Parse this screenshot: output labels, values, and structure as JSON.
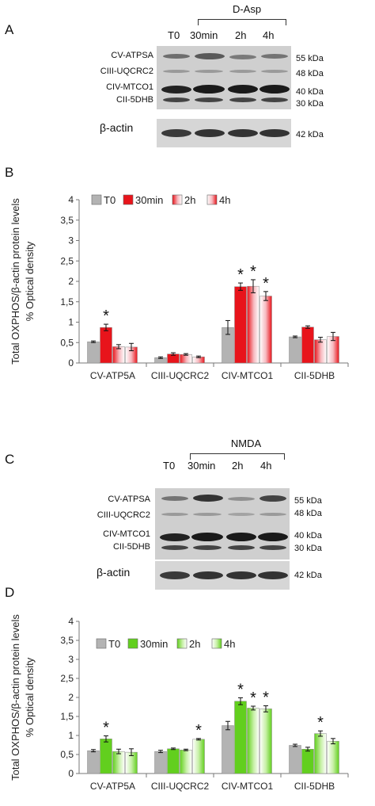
{
  "panels": {
    "A": "A",
    "B": "B",
    "C": "C",
    "D": "D"
  },
  "blots": [
    {
      "id": "A",
      "treatment": "D-Asp",
      "lanes": [
        "T0",
        "30min",
        "2h",
        "4h"
      ],
      "bands": [
        "CV-ATPSA",
        "CIII-UQCRC2",
        "CIV-MTCO1",
        "CII-5DHB"
      ],
      "kda": [
        "55 kDa",
        "48 kDa",
        "40 kDa",
        "30 kDa"
      ],
      "actin_label": "β-actin",
      "actin_kda": "42 kDa"
    },
    {
      "id": "C",
      "treatment": "NMDA",
      "lanes": [
        "T0",
        "30min",
        "2h",
        "4h"
      ],
      "bands": [
        "CV-ATPSA",
        "CIII-UQCRC2",
        "CIV-MTCO1",
        "CII-5DHB"
      ],
      "kda": [
        "55 kDa",
        "48 kDa",
        "40 kDa",
        "30 kDa"
      ],
      "actin_label": "β-actin",
      "actin_kda": "42 kDa"
    }
  ],
  "colors": {
    "t0": "#b3b3b3",
    "red": "#e8141b",
    "red_light": "#f7b9bf",
    "green": "#62cf1e",
    "green_light": "#c8f0a8"
  },
  "chart_data": [
    {
      "type": "bar",
      "panel": "B",
      "ylabel": "Total OXPHOS/β-actin protein levels",
      "ylabel2": "% Optical density",
      "ylim": [
        0,
        4
      ],
      "yticks": [
        "0",
        "0,5",
        "1",
        "1,5",
        "2",
        "2,5",
        "3",
        "3,5",
        "4"
      ],
      "categories": [
        "CV-ATP5A",
        "CIII-UQCRC2",
        "CIV-MTCO1",
        "CII-5DHB"
      ],
      "legend": "top-left",
      "series": [
        {
          "name": "T0",
          "values": [
            0.52,
            0.13,
            0.87,
            0.64
          ],
          "errors": [
            0.02,
            0.02,
            0.17,
            0.02
          ]
        },
        {
          "name": "30min",
          "values": [
            0.87,
            0.22,
            1.87,
            0.88
          ],
          "errors": [
            0.08,
            0.03,
            0.09,
            0.03
          ]
        },
        {
          "name": "2h",
          "values": [
            0.4,
            0.21,
            1.88,
            0.57
          ],
          "errors": [
            0.05,
            0.02,
            0.16,
            0.06
          ]
        },
        {
          "name": "4h",
          "values": [
            0.39,
            0.15,
            1.64,
            0.65
          ],
          "errors": [
            0.09,
            0.02,
            0.11,
            0.1
          ]
        }
      ],
      "significance": [
        {
          "category": 0,
          "series": 1,
          "label": "*"
        },
        {
          "category": 2,
          "series": 1,
          "label": "*"
        },
        {
          "category": 2,
          "series": 2,
          "label": "*"
        },
        {
          "category": 2,
          "series": 3,
          "label": "*"
        }
      ]
    },
    {
      "type": "bar",
      "panel": "D",
      "ylabel": "Total OXPHOS/β-actin protein levels",
      "ylabel2": "% Optical density",
      "ylim": [
        0,
        4
      ],
      "yticks": [
        "0",
        "0,5",
        "1",
        "1,5",
        "2",
        "2,5",
        "3",
        "3,5",
        "4"
      ],
      "categories": [
        "CV-ATP5A",
        "CIII-UQCRC2",
        "CIV-MTCO1",
        "CII-5DHB"
      ],
      "legend": "top-left",
      "series": [
        {
          "name": "T0",
          "values": [
            0.6,
            0.58,
            1.26,
            0.74
          ],
          "errors": [
            0.03,
            0.03,
            0.11,
            0.03
          ]
        },
        {
          "name": "30min",
          "values": [
            0.91,
            0.65,
            1.9,
            0.64
          ],
          "errors": [
            0.08,
            0.02,
            0.09,
            0.05
          ]
        },
        {
          "name": "2h",
          "values": [
            0.58,
            0.62,
            1.72,
            1.05
          ],
          "errors": [
            0.06,
            0.02,
            0.05,
            0.07
          ]
        },
        {
          "name": "4h",
          "values": [
            0.56,
            0.9,
            1.7,
            0.85
          ],
          "errors": [
            0.09,
            0.02,
            0.08,
            0.07
          ]
        }
      ],
      "significance": [
        {
          "category": 0,
          "series": 1,
          "label": "*"
        },
        {
          "category": 1,
          "series": 3,
          "label": "*"
        },
        {
          "category": 2,
          "series": 1,
          "label": "*"
        },
        {
          "category": 2,
          "series": 2,
          "label": "*"
        },
        {
          "category": 2,
          "series": 3,
          "label": "*"
        },
        {
          "category": 3,
          "series": 2,
          "label": "*"
        }
      ]
    }
  ]
}
